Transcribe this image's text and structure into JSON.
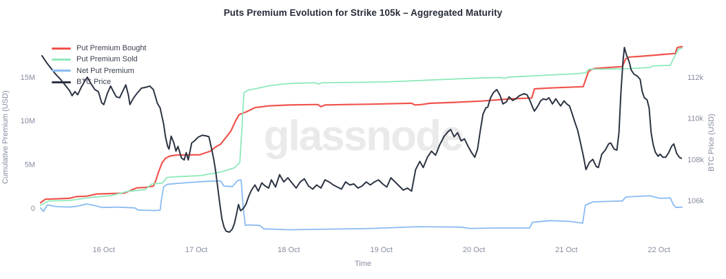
{
  "title": "Puts Premium Evolution for Strike 105k – Aggregated Maturity",
  "watermark": "glassnode",
  "colors": {
    "put_premium_bought": "#f0534d",
    "put_premium_sold": "#8de8ba",
    "net_put_premium": "#88baf2",
    "btc_price": "#2b3342",
    "axis_text": "#868ca0",
    "title_text": "#262b38",
    "watermark_text": "#eaeaea",
    "background": "#ffffff"
  },
  "legend": [
    {
      "label": "Put Premium Bought",
      "color": "#f0534d"
    },
    {
      "label": "Put Premium Sold",
      "color": "#8de8ba"
    },
    {
      "label": "Net Put Premium",
      "color": "#88baf2"
    },
    {
      "label": "BTC Price",
      "color": "#2b3342"
    }
  ],
  "chart_data": {
    "type": "line",
    "title": "Puts Premium Evolution for Strike 105k – Aggregated Maturity",
    "grid": false,
    "legend_position": "top-left-inside",
    "x_axis": {
      "label": "Time",
      "unit": "day of October",
      "range": [
        15.31,
        22.27
      ],
      "ticks": [
        {
          "v": 16,
          "label": "16 Oct"
        },
        {
          "v": 17,
          "label": "17 Oct"
        },
        {
          "v": 18,
          "label": "18 Oct"
        },
        {
          "v": 19,
          "label": "19 Oct"
        },
        {
          "v": 20,
          "label": "20 Oct"
        },
        {
          "v": 21,
          "label": "21 Oct"
        },
        {
          "v": 22,
          "label": "22 Oct"
        }
      ]
    },
    "y_left": {
      "label": "Cumulative Premium (USD)",
      "unit": "million USD",
      "range": [
        -3.25,
        19.1
      ],
      "ticks": [
        {
          "v": 0,
          "label": "0"
        },
        {
          "v": 5,
          "label": "5M"
        },
        {
          "v": 10,
          "label": "10M"
        },
        {
          "v": 15,
          "label": "15M"
        }
      ]
    },
    "y_right": {
      "label": "BTC Price (USD)",
      "unit": "thousand USD",
      "range": [
        104.25,
        113.75
      ],
      "ticks": [
        {
          "v": 106,
          "label": "106k"
        },
        {
          "v": 108,
          "label": "108k"
        },
        {
          "v": 110,
          "label": "110k"
        },
        {
          "v": 112,
          "label": "112k"
        }
      ]
    },
    "series": [
      {
        "name": "Put Premium Bought",
        "axis": "left",
        "color": "#f0534d",
        "width": 2.2,
        "x": [
          15.317,
          15.369,
          15.48,
          15.629,
          15.703,
          15.814,
          15.926,
          16.074,
          16.223,
          16.356,
          16.446,
          16.535,
          16.564,
          16.594,
          16.631,
          16.668,
          16.713,
          16.78,
          17.039,
          17.151,
          17.21,
          17.262,
          17.314,
          17.373,
          17.425,
          17.462,
          17.536,
          17.633,
          17.781,
          18.004,
          18.264,
          18.316,
          18.346,
          18.39,
          18.598,
          18.895,
          19.326,
          19.363,
          19.43,
          19.527,
          19.786,
          20.083,
          20.38,
          20.625,
          20.654,
          20.825,
          21.181,
          21.204,
          21.233,
          21.255,
          21.307,
          21.604,
          21.641,
          21.678,
          21.826,
          22.049,
          22.175,
          22.198,
          22.25
        ],
        "y": [
          0.6,
          1.0,
          1.05,
          1.1,
          1.3,
          1.35,
          1.6,
          1.65,
          1.7,
          2.3,
          2.35,
          2.5,
          3.2,
          4.2,
          5.2,
          5.7,
          5.95,
          6.05,
          6.1,
          6.5,
          7.0,
          7.3,
          8.0,
          8.8,
          10.0,
          10.7,
          11.0,
          11.5,
          11.7,
          11.8,
          11.85,
          11.85,
          11.6,
          11.8,
          11.85,
          11.9,
          12.0,
          11.8,
          11.85,
          12.0,
          12.1,
          12.25,
          12.5,
          12.6,
          13.65,
          13.75,
          13.9,
          14.6,
          15.5,
          15.8,
          16.0,
          16.2,
          17.1,
          17.3,
          17.4,
          17.6,
          17.7,
          18.4,
          18.5
        ]
      },
      {
        "name": "Put Premium Sold",
        "axis": "left",
        "color": "#8de8ba",
        "width": 1.8,
        "x": [
          15.317,
          15.406,
          15.629,
          15.851,
          16.074,
          16.26,
          16.446,
          16.52,
          16.631,
          16.683,
          16.817,
          17.039,
          17.262,
          17.41,
          17.47,
          17.492,
          17.514,
          17.559,
          17.655,
          17.781,
          17.93,
          18.078,
          18.286,
          18.316,
          18.361,
          18.747,
          19.043,
          19.393,
          19.712,
          20.083,
          20.291,
          20.328,
          20.38,
          20.751,
          21.122,
          21.211,
          21.24,
          21.619,
          21.901,
          21.938,
          22.123,
          22.16,
          22.212,
          22.25
        ],
        "y": [
          0.3,
          0.8,
          0.85,
          1.2,
          1.4,
          1.9,
          2.1,
          2.75,
          2.85,
          3.5,
          3.6,
          3.7,
          4.1,
          4.6,
          5.2,
          9.0,
          13.2,
          13.5,
          13.7,
          14.0,
          14.2,
          14.3,
          14.35,
          14.2,
          14.35,
          14.4,
          14.45,
          14.6,
          14.75,
          14.9,
          14.95,
          14.85,
          15.0,
          15.2,
          15.4,
          15.5,
          15.9,
          15.95,
          16.1,
          16.3,
          16.35,
          17.2,
          18.2,
          18.35
        ]
      },
      {
        "name": "Net Put Premium",
        "axis": "left",
        "color": "#88baf2",
        "width": 1.8,
        "x": [
          15.317,
          15.347,
          15.391,
          15.48,
          15.629,
          15.718,
          15.814,
          15.888,
          15.985,
          16.148,
          16.334,
          16.371,
          16.557,
          16.609,
          16.624,
          16.646,
          16.683,
          16.78,
          16.906,
          17.114,
          17.262,
          17.299,
          17.388,
          17.447,
          17.484,
          17.507,
          17.529,
          17.559,
          17.685,
          17.73,
          18.004,
          18.301,
          18.895,
          19.393,
          19.861,
          19.957,
          20.231,
          20.602,
          20.632,
          20.825,
          21.048,
          21.174,
          21.204,
          21.285,
          21.604,
          21.641,
          21.901,
          21.953,
          22.012,
          22.123,
          22.153,
          22.183,
          22.25
        ],
        "y": [
          0.0,
          -0.4,
          0.35,
          0.15,
          0.1,
          0.2,
          0.45,
          0.3,
          0.05,
          0.1,
          0.0,
          -0.25,
          -0.3,
          -0.25,
          1.0,
          2.4,
          2.7,
          2.8,
          2.9,
          3.05,
          3.1,
          2.5,
          2.45,
          3.15,
          3.2,
          0.0,
          -2.0,
          -1.95,
          -2.0,
          -2.4,
          -2.5,
          -2.45,
          -2.35,
          -2.15,
          -2.2,
          -2.35,
          -2.3,
          -2.3,
          -1.65,
          -1.45,
          -1.55,
          -1.75,
          0.3,
          0.7,
          0.8,
          1.25,
          1.4,
          1.25,
          1.1,
          1.15,
          0.4,
          0.05,
          0.1
        ]
      },
      {
        "name": "BTC Price",
        "axis": "right",
        "color": "#2b3342",
        "width": 2.0,
        "x": [
          15.332,
          15.384,
          15.436,
          15.48,
          15.532,
          15.577,
          15.629,
          15.658,
          15.688,
          15.718,
          15.755,
          15.792,
          15.822,
          15.859,
          15.903,
          15.941,
          15.978,
          16.0,
          16.037,
          16.074,
          16.104,
          16.134,
          16.171,
          16.208,
          16.238,
          16.267,
          16.282,
          16.319,
          16.356,
          16.408,
          16.446,
          16.497,
          16.535,
          16.579,
          16.609,
          16.646,
          16.668,
          16.69,
          16.705,
          16.728,
          16.757,
          16.78,
          16.802,
          16.839,
          16.869,
          16.891,
          16.913,
          16.95,
          16.98,
          17.017,
          17.062,
          17.099,
          17.136,
          17.166,
          17.188,
          17.21,
          17.232,
          17.254,
          17.277,
          17.299,
          17.321,
          17.358,
          17.388,
          17.41,
          17.433,
          17.455,
          17.477,
          17.507,
          17.536,
          17.566,
          17.596,
          17.633,
          17.67,
          17.707,
          17.744,
          17.781,
          17.811,
          17.856,
          17.9,
          17.945,
          17.989,
          18.034,
          18.078,
          18.123,
          18.168,
          18.212,
          18.257,
          18.301,
          18.346,
          18.39,
          18.435,
          18.48,
          18.524,
          18.568,
          18.613,
          18.658,
          18.702,
          18.747,
          18.791,
          18.836,
          18.88,
          18.925,
          18.969,
          19.014,
          19.058,
          19.103,
          19.148,
          19.192,
          19.237,
          19.281,
          19.326,
          19.37,
          19.415,
          19.452,
          19.497,
          19.541,
          19.586,
          19.63,
          19.675,
          19.72,
          19.749,
          19.786,
          19.823,
          19.861,
          19.898,
          19.935,
          19.972,
          20.009,
          20.039,
          20.069,
          20.098,
          20.128,
          20.15,
          20.18,
          20.21,
          20.247,
          20.284,
          20.313,
          20.351,
          20.38,
          20.417,
          20.454,
          20.491,
          20.543,
          20.573,
          20.602,
          20.632,
          20.654,
          20.691,
          20.721,
          20.751,
          20.781,
          20.81,
          20.848,
          20.885,
          20.914,
          20.937,
          20.974,
          21.003,
          21.033,
          21.063,
          21.092,
          21.122,
          21.152,
          21.181,
          21.211,
          21.248,
          21.285,
          21.322,
          21.345,
          21.382,
          21.419,
          21.456,
          21.478,
          21.515,
          21.545,
          21.567,
          21.589,
          21.611,
          21.626,
          21.648,
          21.678,
          21.7,
          21.73,
          21.767,
          21.796,
          21.819,
          21.841,
          21.871,
          21.893,
          21.915,
          21.938,
          21.96,
          21.99,
          22.012,
          22.042,
          22.071,
          22.101,
          22.138,
          22.16,
          22.19,
          22.22,
          22.242
        ],
        "y": [
          113.05,
          112.7,
          112.4,
          112.15,
          111.9,
          111.65,
          111.35,
          111.1,
          111.3,
          111.15,
          111.5,
          111.8,
          112.0,
          111.7,
          111.4,
          111.3,
          110.75,
          110.67,
          111.2,
          111.57,
          111.3,
          111.05,
          111.0,
          111.35,
          111.63,
          111.1,
          110.67,
          110.97,
          111.2,
          111.47,
          111.5,
          111.57,
          111.4,
          110.73,
          110.5,
          109.73,
          109.07,
          108.63,
          108.5,
          109.13,
          108.8,
          108.4,
          108.63,
          108.07,
          107.97,
          108.33,
          107.97,
          108.8,
          108.9,
          109.07,
          109.17,
          109.15,
          109.1,
          108.5,
          108.0,
          107.4,
          106.6,
          105.8,
          105.1,
          104.7,
          104.5,
          104.45,
          104.6,
          104.85,
          105.3,
          105.8,
          105.5,
          105.6,
          105.8,
          106.2,
          106.5,
          106.75,
          106.45,
          106.85,
          106.7,
          106.6,
          107.0,
          106.65,
          107.25,
          106.9,
          107.1,
          106.85,
          106.6,
          106.9,
          107.05,
          106.7,
          106.55,
          106.75,
          106.6,
          107.0,
          106.9,
          106.75,
          106.65,
          106.55,
          106.9,
          106.75,
          106.8,
          106.6,
          106.7,
          106.9,
          106.75,
          106.9,
          107.0,
          106.8,
          106.65,
          107.1,
          106.9,
          106.7,
          106.5,
          106.6,
          106.45,
          107.5,
          107.9,
          107.6,
          108.1,
          108.4,
          108.2,
          108.7,
          109.1,
          109.35,
          109.45,
          109.1,
          109.3,
          108.9,
          109.0,
          108.65,
          108.35,
          108.1,
          108.5,
          109.4,
          110.2,
          110.5,
          110.55,
          111.0,
          111.25,
          111.4,
          111.1,
          110.7,
          110.8,
          111.05,
          110.87,
          110.95,
          111.1,
          111.2,
          111.15,
          110.9,
          110.55,
          110.35,
          110.6,
          110.85,
          110.95,
          110.9,
          111.0,
          110.7,
          110.95,
          110.75,
          110.6,
          110.85,
          110.7,
          110.6,
          110.2,
          109.8,
          109.4,
          108.8,
          108.2,
          107.5,
          107.85,
          108.0,
          107.65,
          107.6,
          108.25,
          108.45,
          108.75,
          108.8,
          108.5,
          108.45,
          109.3,
          111.3,
          112.8,
          113.45,
          113.1,
          112.75,
          112.35,
          112.15,
          112.05,
          111.9,
          111.3,
          111.0,
          110.9,
          110.5,
          109.3,
          108.7,
          108.35,
          108.15,
          108.25,
          108.1,
          108.1,
          108.3,
          108.65,
          108.75,
          108.3,
          108.1,
          108.05
        ]
      }
    ]
  }
}
